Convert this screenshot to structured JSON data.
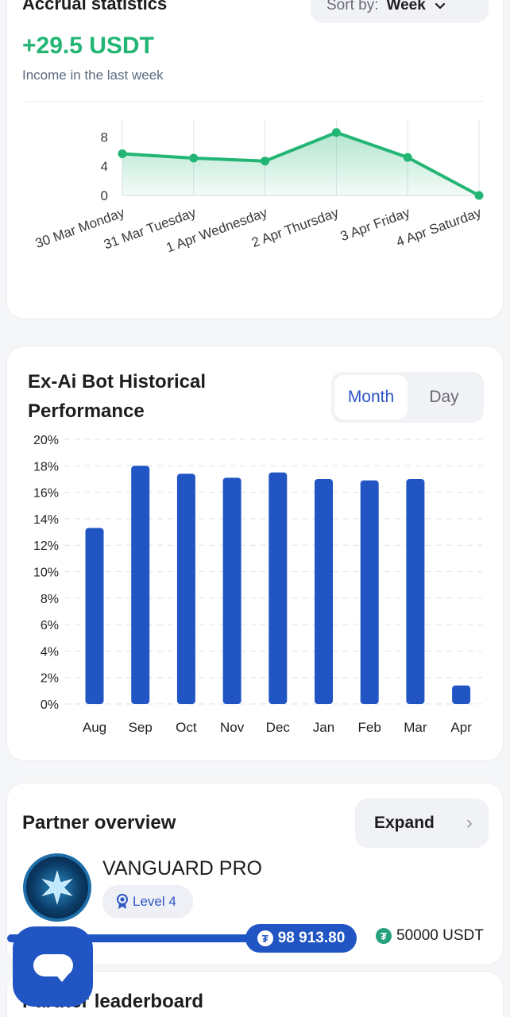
{
  "accrual": {
    "title": "Accrual statistics",
    "sort_label": "Sort by:",
    "sort_value": "Week",
    "value": "+29.5 USDT",
    "subtitle": "Income in the last week"
  },
  "performance": {
    "title": "Ex-Ai Bot Historical Performance",
    "tabs": [
      {
        "label": "Month",
        "active": true
      },
      {
        "label": "Day",
        "active": false
      }
    ]
  },
  "partner": {
    "title": "Partner overview",
    "expand_label": "Expand",
    "rank_name": "VANGUARD PRO",
    "level": "Level 4",
    "current_amount": "98 913.80",
    "target_amount": "50000 USDT"
  },
  "leaderboard": {
    "title": "Partner leaderboard"
  },
  "colors": {
    "accent_green": "#22b574",
    "accent_blue": "#2155c4",
    "tab_active": "#2f57c4"
  },
  "chart_data": [
    {
      "type": "area",
      "categories": [
        "30 Mar Monday",
        "31 Mar Tuesday",
        "1 Apr Wednesday",
        "2 Apr Thursday",
        "3 Apr Friday",
        "4 Apr Saturday"
      ],
      "values": [
        5.7,
        5.1,
        4.7,
        8.6,
        5.2,
        0
      ],
      "yticks": [
        0,
        4,
        8
      ],
      "ylim": [
        0,
        10
      ],
      "color": "#22b574",
      "grid": "vertical"
    },
    {
      "type": "bar",
      "categories": [
        "Aug",
        "Sep",
        "Oct",
        "Nov",
        "Dec",
        "Jan",
        "Feb",
        "Mar",
        "Apr"
      ],
      "values": [
        13.3,
        18.0,
        17.4,
        17.1,
        17.5,
        17.0,
        16.9,
        17.0,
        1.4
      ],
      "yticks": [
        "0%",
        "2%",
        "4%",
        "6%",
        "8%",
        "10%",
        "12%",
        "14%",
        "16%",
        "18%",
        "20%"
      ],
      "ylim": [
        0,
        20
      ],
      "color": "#2155c4",
      "grid": "horizontal-dashed"
    }
  ]
}
